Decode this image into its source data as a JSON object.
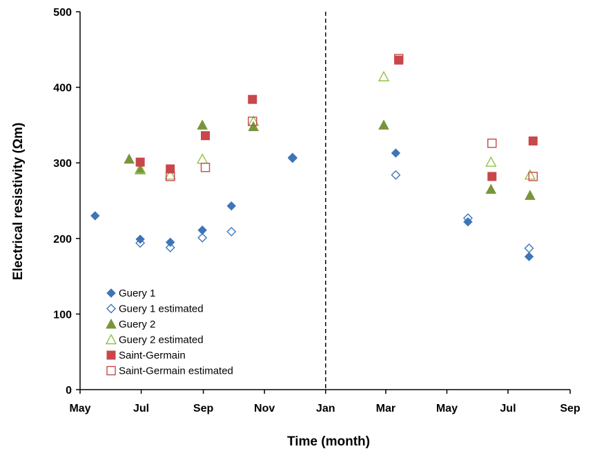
{
  "chart_data": {
    "type": "scatter",
    "title": "",
    "xlabel": "Time (month)",
    "ylabel": "Electrical resistivity (Ωm)",
    "x_ticks": [
      "May",
      "Jul",
      "Sep",
      "Nov",
      "Jan",
      "Mar",
      "May",
      "Jul",
      "Sep"
    ],
    "y_ticks": [
      "0",
      "100",
      "200",
      "300",
      "400",
      "500"
    ],
    "ylim": [
      0,
      500
    ],
    "grid": false,
    "legend_position": "bottom-left",
    "divider": "Jan",
    "series": [
      {
        "name": "Guery 1",
        "marker": "diamond",
        "filled": true,
        "color": "#3d75b8",
        "points": [
          {
            "x": "2011-05-16",
            "y": 230
          },
          {
            "x": "2011-06-30",
            "y": 199
          },
          {
            "x": "2011-07-30",
            "y": 195
          },
          {
            "x": "2011-08-31",
            "y": 211
          },
          {
            "x": "2011-09-29",
            "y": 243
          },
          {
            "x": "2011-11-29",
            "y": 306
          },
          {
            "x": "2012-03-11",
            "y": 313
          },
          {
            "x": "2012-05-22",
            "y": 222
          },
          {
            "x": "2012-07-22",
            "y": 176
          }
        ]
      },
      {
        "name": "Guery 1 estimated",
        "marker": "diamond",
        "filled": false,
        "color": "#3d75b8",
        "points": [
          {
            "x": "2011-06-30",
            "y": 194
          },
          {
            "x": "2011-07-30",
            "y": 188
          },
          {
            "x": "2011-08-31",
            "y": 201
          },
          {
            "x": "2011-09-29",
            "y": 209
          },
          {
            "x": "2011-11-29",
            "y": 307
          },
          {
            "x": "2012-03-11",
            "y": 284
          },
          {
            "x": "2012-05-22",
            "y": 227
          },
          {
            "x": "2012-07-22",
            "y": 187
          }
        ]
      },
      {
        "name": "Guery 2",
        "marker": "triangle",
        "filled": true,
        "color": "#77963a",
        "points": [
          {
            "x": "2011-06-19",
            "y": 305
          },
          {
            "x": "2011-06-30",
            "y": 291
          },
          {
            "x": "2011-08-31",
            "y": 350
          },
          {
            "x": "2011-10-21",
            "y": 348
          },
          {
            "x": "2012-02-28",
            "y": 350
          },
          {
            "x": "2012-06-14",
            "y": 265
          },
          {
            "x": "2012-07-23",
            "y": 257
          }
        ]
      },
      {
        "name": "Guery 2 estimated",
        "marker": "triangle",
        "filled": false,
        "color": "#92c047",
        "points": [
          {
            "x": "2011-06-30",
            "y": 292
          },
          {
            "x": "2011-07-30",
            "y": 284
          },
          {
            "x": "2011-08-31",
            "y": 305
          },
          {
            "x": "2011-10-21",
            "y": 355
          },
          {
            "x": "2012-02-28",
            "y": 414
          },
          {
            "x": "2012-06-14",
            "y": 301
          },
          {
            "x": "2012-07-23",
            "y": 284
          }
        ]
      },
      {
        "name": "Saint-Germain",
        "marker": "square",
        "filled": true,
        "color": "#c8474b",
        "points": [
          {
            "x": "2011-06-30",
            "y": 301
          },
          {
            "x": "2011-07-30",
            "y": 292
          },
          {
            "x": "2011-09-03",
            "y": 336
          },
          {
            "x": "2011-10-20",
            "y": 384
          },
          {
            "x": "2012-03-14",
            "y": 436
          },
          {
            "x": "2012-06-15",
            "y": 282
          },
          {
            "x": "2012-07-26",
            "y": 329
          }
        ]
      },
      {
        "name": "Saint-Germain estimated",
        "marker": "square",
        "filled": false,
        "color": "#c8474b",
        "points": [
          {
            "x": "2011-07-30",
            "y": 282
          },
          {
            "x": "2011-09-03",
            "y": 294
          },
          {
            "x": "2011-10-20",
            "y": 355
          },
          {
            "x": "2012-03-14",
            "y": 438
          },
          {
            "x": "2012-06-15",
            "y": 326
          },
          {
            "x": "2012-07-26",
            "y": 282
          }
        ]
      }
    ]
  }
}
